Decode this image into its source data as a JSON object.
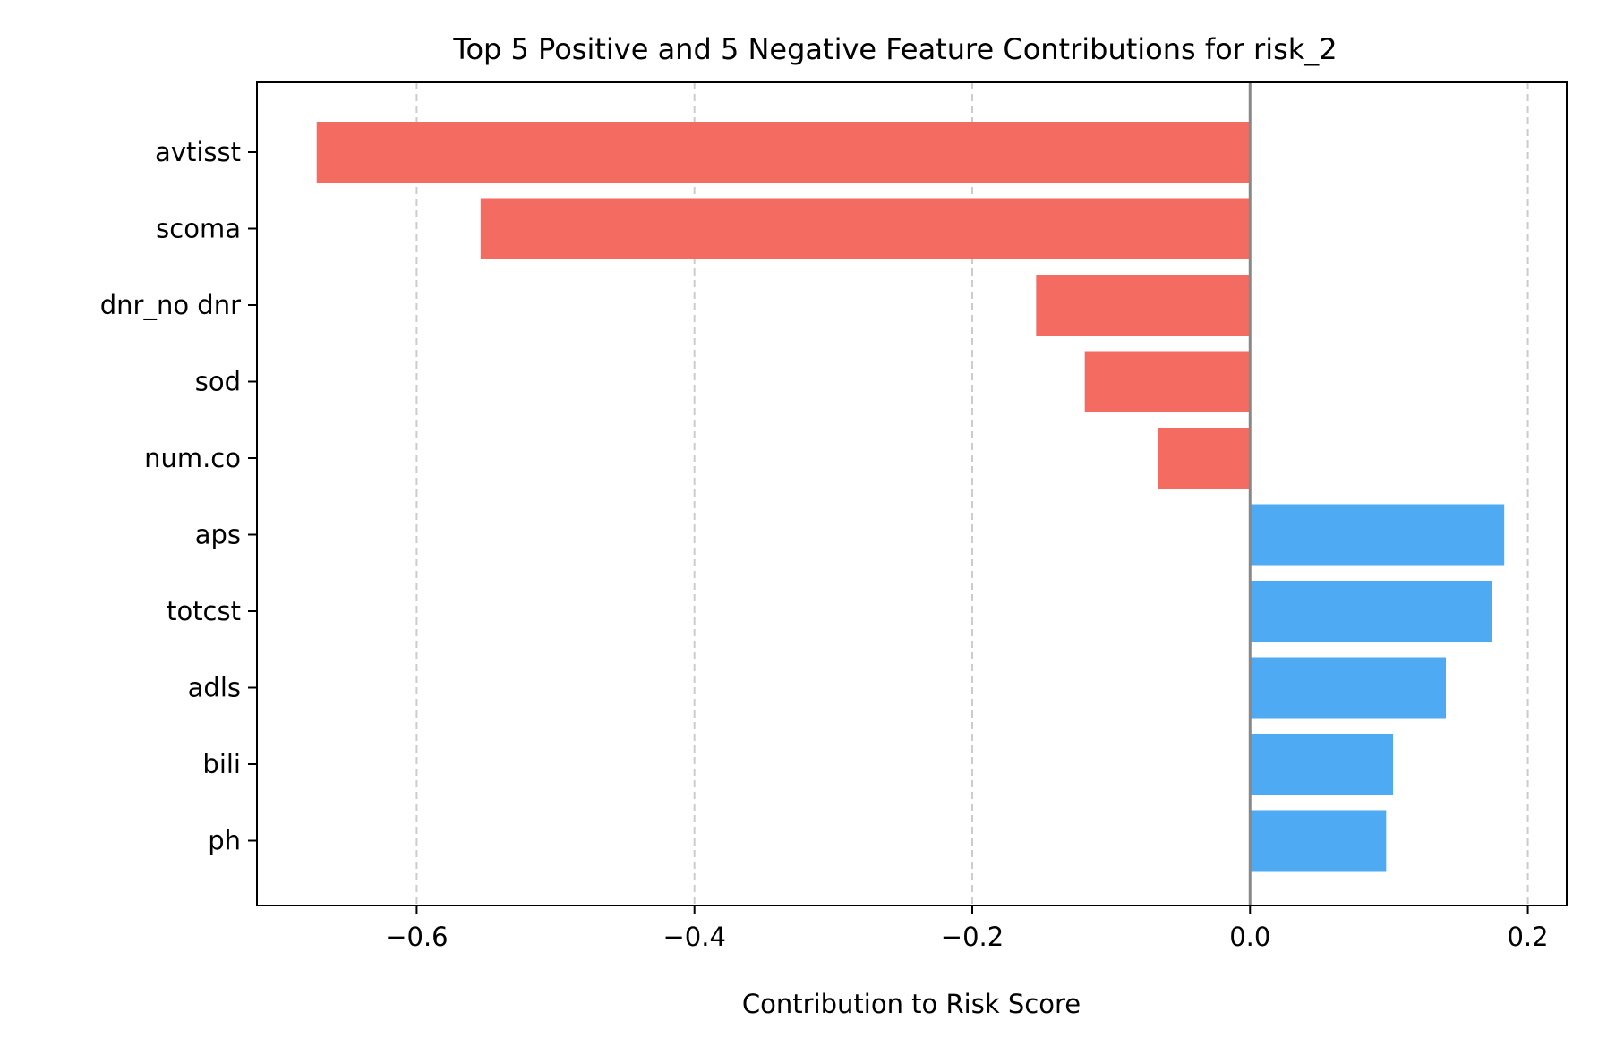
{
  "chart_data": {
    "type": "bar",
    "orientation": "horizontal",
    "title": "Top 5 Positive and 5 Negative Feature Contributions for risk_2",
    "xlabel": "Contribution to Risk Score",
    "ylabel": "",
    "xlim": [
      -0.715,
      0.228
    ],
    "xticks": [
      -0.6,
      -0.4,
      -0.2,
      0.0,
      0.2
    ],
    "xtick_labels": [
      "−0.6",
      "−0.4",
      "−0.2",
      "0.0",
      "0.2"
    ],
    "grid": "x dashed",
    "categories": [
      "avtisst",
      "scoma",
      "dnr_no dnr",
      "sod",
      "num.co",
      "aps",
      "totcst",
      "adls",
      "bili",
      "ph"
    ],
    "values": [
      -0.672,
      -0.554,
      -0.154,
      -0.119,
      -0.066,
      0.183,
      0.174,
      0.141,
      0.103,
      0.098
    ],
    "colors": {
      "negative": "#f46b62",
      "positive": "#4daaf3",
      "grid": "#cccccc",
      "zero_line": "#888888"
    }
  }
}
